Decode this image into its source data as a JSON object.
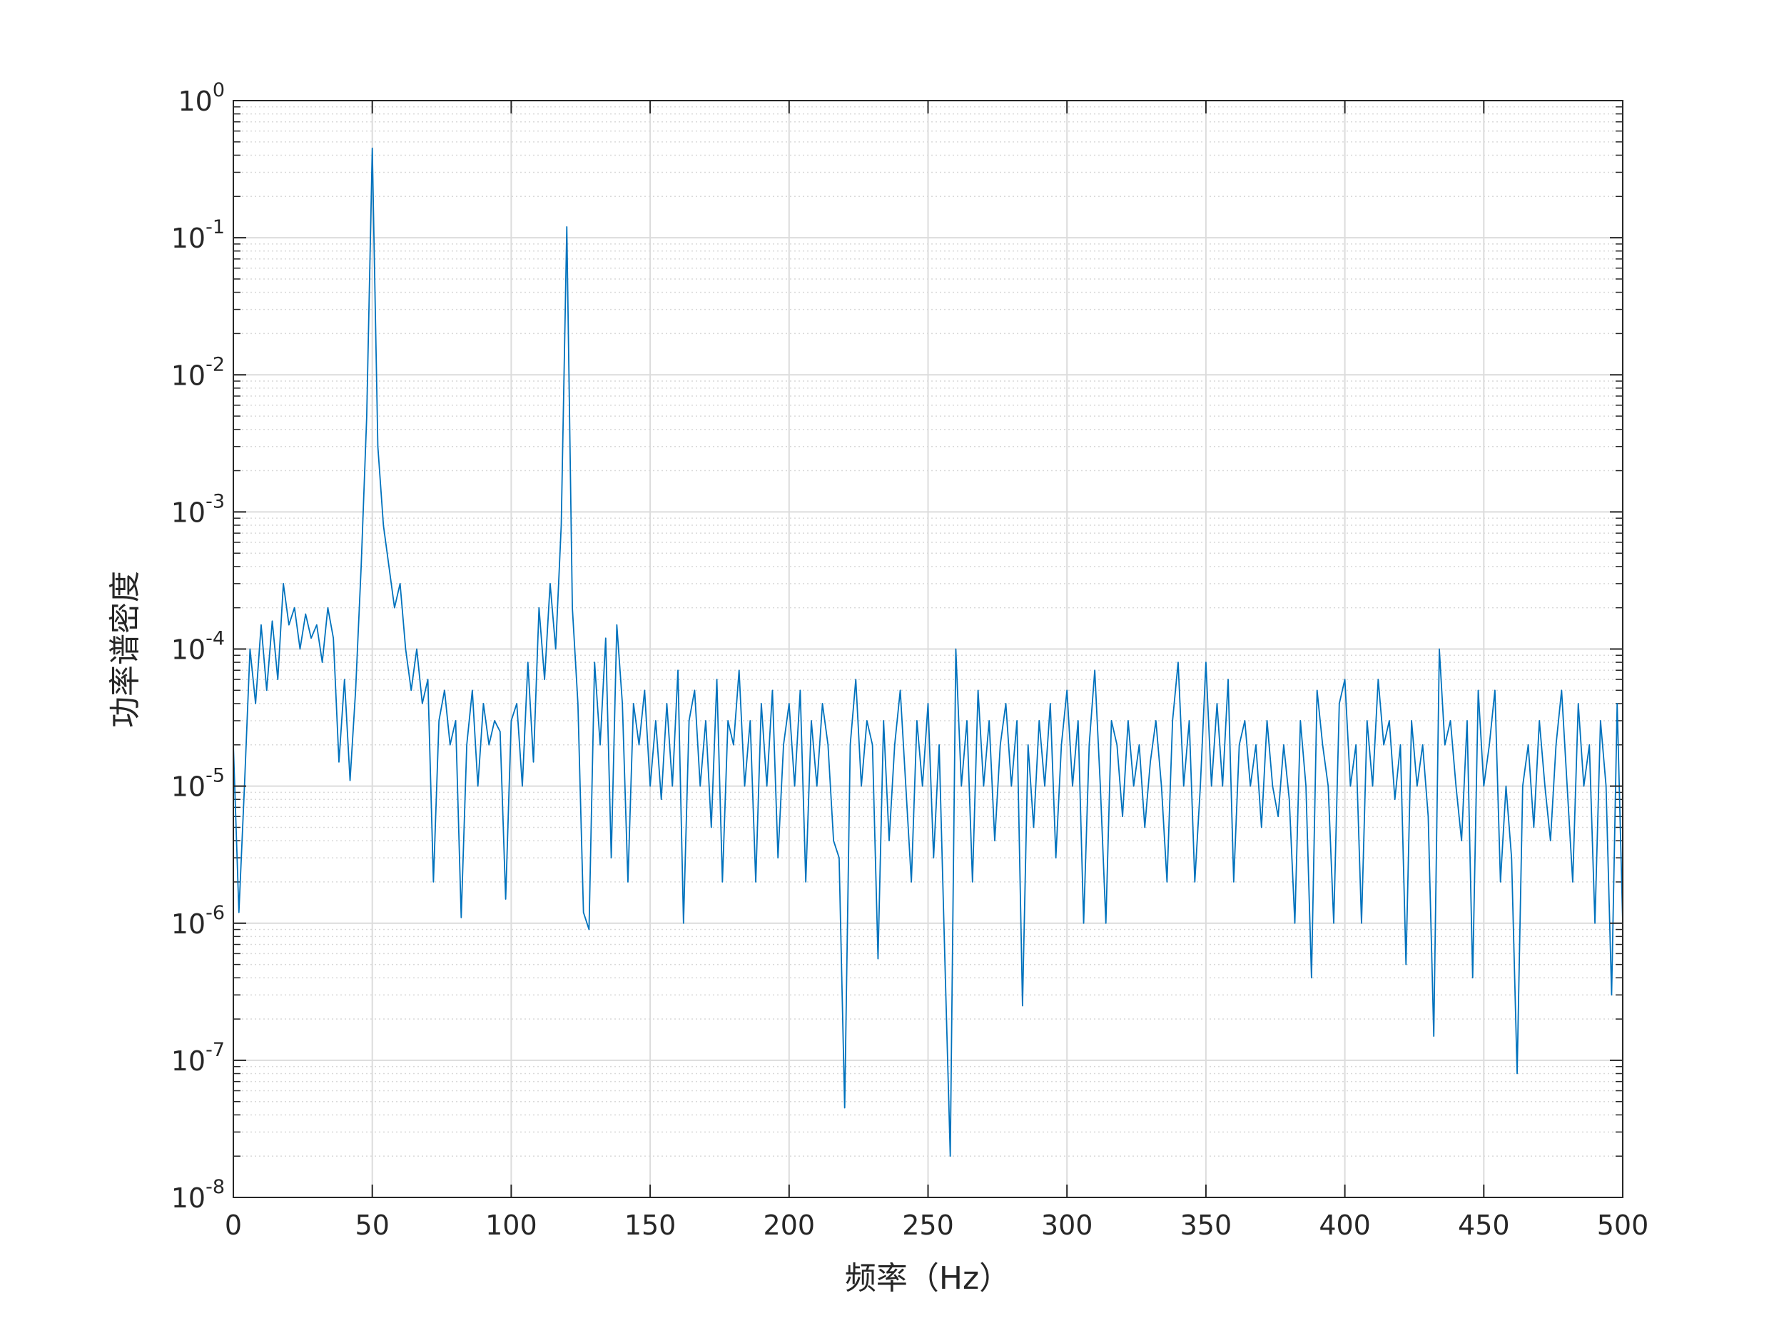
{
  "chart_data": {
    "type": "line",
    "xlabel": "频率（Hz）",
    "ylabel": "功率谱密度",
    "x": [
      0,
      2,
      4,
      6,
      8,
      10,
      12,
      14,
      16,
      18,
      20,
      22,
      24,
      26,
      28,
      30,
      32,
      34,
      36,
      38,
      40,
      42,
      44,
      46,
      48,
      50,
      52,
      54,
      56,
      58,
      60,
      62,
      64,
      66,
      68,
      70,
      72,
      74,
      76,
      78,
      80,
      82,
      84,
      86,
      88,
      90,
      92,
      94,
      96,
      98,
      100,
      102,
      104,
      106,
      108,
      110,
      112,
      114,
      116,
      118,
      120,
      122,
      124,
      126,
      128,
      130,
      132,
      134,
      136,
      138,
      140,
      142,
      144,
      146,
      148,
      150,
      152,
      154,
      156,
      158,
      160,
      162,
      164,
      166,
      168,
      170,
      172,
      174,
      176,
      178,
      180,
      182,
      184,
      186,
      188,
      190,
      192,
      194,
      196,
      198,
      200,
      202,
      204,
      206,
      208,
      210,
      212,
      214,
      216,
      218,
      220,
      222,
      224,
      226,
      228,
      230,
      232,
      234,
      236,
      238,
      240,
      242,
      244,
      246,
      248,
      250,
      252,
      254,
      256,
      258,
      260,
      262,
      264,
      266,
      268,
      270,
      272,
      274,
      276,
      278,
      280,
      282,
      284,
      286,
      288,
      290,
      292,
      294,
      296,
      298,
      300,
      302,
      304,
      306,
      308,
      310,
      312,
      314,
      316,
      318,
      320,
      322,
      324,
      326,
      328,
      330,
      332,
      334,
      336,
      338,
      340,
      342,
      344,
      346,
      348,
      350,
      352,
      354,
      356,
      358,
      360,
      362,
      364,
      366,
      368,
      370,
      372,
      374,
      376,
      378,
      380,
      382,
      384,
      386,
      388,
      390,
      392,
      394,
      396,
      398,
      400,
      402,
      404,
      406,
      408,
      410,
      412,
      414,
      416,
      418,
      420,
      422,
      424,
      426,
      428,
      430,
      432,
      434,
      436,
      438,
      440,
      442,
      444,
      446,
      448,
      450,
      452,
      454,
      456,
      458,
      460,
      462,
      464,
      466,
      468,
      470,
      472,
      474,
      476,
      478,
      480,
      482,
      484,
      486,
      488,
      490,
      492,
      494,
      496,
      498,
      500
    ],
    "series": [
      {
        "color": "#0072bd",
        "values": [
          2e-05,
          1.2e-06,
          1e-05,
          0.0001,
          4e-05,
          0.00015,
          5e-05,
          0.00016,
          6e-05,
          0.0003,
          0.00015,
          0.0002,
          0.0001,
          0.00018,
          0.00012,
          0.00015,
          8e-05,
          0.0002,
          0.00012,
          1.5e-05,
          6e-05,
          1.1e-05,
          5e-05,
          0.0004,
          0.005,
          0.45,
          0.003,
          0.0008,
          0.0004,
          0.0002,
          0.0003,
          0.0001,
          5e-05,
          0.0001,
          4e-05,
          6e-05,
          2e-06,
          3e-05,
          5e-05,
          2e-05,
          3e-05,
          1.1e-06,
          2e-05,
          5e-05,
          1e-05,
          4e-05,
          2e-05,
          3e-05,
          2.5e-05,
          1.5e-06,
          3e-05,
          4e-05,
          1e-05,
          8e-05,
          1.5e-05,
          0.0002,
          6e-05,
          0.0003,
          0.0001,
          0.0008,
          0.12,
          0.0002,
          4e-05,
          1.2e-06,
          9e-07,
          8e-05,
          2e-05,
          0.00012,
          3e-06,
          0.00015,
          4e-05,
          2e-06,
          4e-05,
          2e-05,
          5e-05,
          1e-05,
          3e-05,
          8e-06,
          4e-05,
          1e-05,
          7e-05,
          1e-06,
          3e-05,
          5e-05,
          1e-05,
          3e-05,
          5e-06,
          6e-05,
          2e-06,
          3e-05,
          2e-05,
          7e-05,
          1e-05,
          3e-05,
          2e-06,
          4e-05,
          1e-05,
          5e-05,
          3e-06,
          2e-05,
          4e-05,
          1e-05,
          5e-05,
          2e-06,
          3e-05,
          1e-05,
          4e-05,
          2e-05,
          4e-06,
          3e-06,
          4.5e-08,
          2e-05,
          6e-05,
          1e-05,
          3e-05,
          2e-05,
          5.5e-07,
          3e-05,
          4e-06,
          2e-05,
          5e-05,
          1e-05,
          2e-06,
          3e-05,
          1e-05,
          4e-05,
          3e-06,
          2e-05,
          6e-07,
          2e-08,
          0.0001,
          1e-05,
          3e-05,
          2e-06,
          5e-05,
          1e-05,
          3e-05,
          4e-06,
          2e-05,
          4e-05,
          1e-05,
          3e-05,
          2.5e-07,
          2e-05,
          5e-06,
          3e-05,
          1e-05,
          4e-05,
          3e-06,
          2e-05,
          5e-05,
          1e-05,
          3e-05,
          1e-06,
          2e-05,
          7e-05,
          1e-05,
          1e-06,
          3e-05,
          2e-05,
          6e-06,
          3e-05,
          1e-05,
          2e-05,
          5e-06,
          1.5e-05,
          3e-05,
          1e-05,
          2e-06,
          3e-05,
          8e-05,
          1e-05,
          3e-05,
          2e-06,
          1e-05,
          8e-05,
          1e-05,
          4e-05,
          1e-05,
          6e-05,
          2e-06,
          2e-05,
          3e-05,
          1e-05,
          2e-05,
          5e-06,
          3e-05,
          1e-05,
          6e-06,
          2e-05,
          8e-06,
          1e-06,
          3e-05,
          1e-05,
          4e-07,
          5e-05,
          2e-05,
          1e-05,
          1e-06,
          4e-05,
          6e-05,
          1e-05,
          2e-05,
          1e-06,
          3e-05,
          1e-05,
          6e-05,
          2e-05,
          3e-05,
          8e-06,
          2e-05,
          5e-07,
          3e-05,
          1e-05,
          2e-05,
          6e-06,
          1.5e-07,
          0.0001,
          2e-05,
          3e-05,
          1e-05,
          4e-06,
          3e-05,
          4e-07,
          5e-05,
          1e-05,
          2e-05,
          5e-05,
          2e-06,
          1e-05,
          3e-06,
          8e-08,
          1e-05,
          2e-05,
          5e-06,
          3e-05,
          1e-05,
          4e-06,
          2e-05,
          5e-05,
          1e-05,
          2e-06,
          4e-05,
          1e-05,
          2e-05,
          1e-06,
          3e-05,
          1e-05,
          3e-07,
          4e-05,
          1e-06
        ]
      }
    ],
    "xlim": [
      0,
      500
    ],
    "xticks": [
      0,
      50,
      100,
      150,
      200,
      250,
      300,
      350,
      400,
      450,
      500
    ],
    "ylim": [
      1e-08,
      1
    ],
    "ylog": true,
    "yticks": [
      {
        "value": 1e-08,
        "label": "10^-8"
      },
      {
        "value": 1e-07,
        "label": "10^-7"
      },
      {
        "value": 1e-06,
        "label": "10^-6"
      },
      {
        "value": 1e-05,
        "label": "10^-5"
      },
      {
        "value": 0.0001,
        "label": "10^-4"
      },
      {
        "value": 0.001,
        "label": "10^-3"
      },
      {
        "value": 0.01,
        "label": "10^-2"
      },
      {
        "value": 0.1,
        "label": "10^-1"
      },
      {
        "value": 1,
        "label": "10^0"
      }
    ],
    "grid": true,
    "minor_grid": true
  }
}
